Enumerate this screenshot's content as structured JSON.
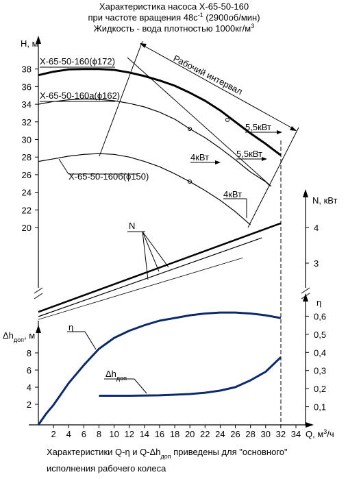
{
  "title": [
    "Характеристика насоса Х-65-50-160",
    [
      "при частоте вращения 48с",
      "-1",
      " (2900об/мин)"
    ],
    [
      "Жидкость - вода плотностью 1000кг/м",
      "3"
    ]
  ],
  "caption": [
    [
      "Характеристики Q-η и Q-Δh",
      "доп",
      " приведены для \"основного\""
    ],
    "исполнения рабочего колеса"
  ],
  "chart_data": [
    {
      "type": "line",
      "ylabel": "H, м",
      "xlim": [
        0,
        34
      ],
      "ylim": [
        20,
        40
      ],
      "yticks": [
        20,
        22,
        24,
        26,
        28,
        30,
        32,
        34,
        36,
        38
      ],
      "series": [
        {
          "name": "Х-65-50-160(ϕ172)",
          "color": "#000000",
          "line_width": 3,
          "x": [
            0,
            2,
            4,
            6,
            8,
            10,
            12,
            14,
            16,
            18,
            20,
            22,
            24,
            26,
            28,
            30,
            32
          ],
          "values": [
            37.3,
            37.7,
            37.95,
            38.0,
            38.0,
            37.9,
            37.6,
            37.2,
            36.7,
            36.1,
            35.3,
            34.4,
            33.3,
            32.0,
            30.7,
            29.5,
            28.2
          ]
        },
        {
          "name": "Х-65-50-160а(ϕ162)",
          "color": "#000000",
          "line_width": 1.2,
          "x": [
            0,
            2,
            4,
            6,
            8,
            10,
            12,
            14,
            16,
            18,
            20,
            22,
            24,
            26,
            28,
            30,
            30.6
          ],
          "values": [
            34.0,
            34.3,
            34.5,
            34.6,
            34.55,
            34.4,
            34.1,
            33.7,
            33.1,
            32.3,
            31.2,
            30.2,
            29.0,
            27.7,
            26.3,
            25.2,
            24.7
          ]
        },
        {
          "name": "Х-65-50-160б(ϕ150)",
          "color": "#000000",
          "line_width": 1.2,
          "x": [
            0,
            2,
            4,
            6,
            8,
            10,
            12,
            14,
            16,
            18,
            20,
            22,
            24,
            26,
            28
          ],
          "values": [
            27.5,
            27.8,
            28.1,
            28.3,
            28.4,
            28.3,
            28.0,
            27.5,
            26.9,
            26.1,
            25.2,
            24.2,
            23.1,
            21.8,
            20.3
          ]
        }
      ],
      "annotations": [
        "4кВт",
        "5,5кВт",
        "5,5кВт",
        "4кВт",
        "Рабочий интервал"
      ]
    },
    {
      "type": "line",
      "ylabel": "N, кВт",
      "xlim": [
        0,
        34
      ],
      "ylim": [
        2.5,
        5
      ],
      "yticks": [
        3,
        4
      ],
      "series": [
        {
          "color": "#000000",
          "line_width": 2.5,
          "x": [
            0,
            32
          ],
          "values": [
            1.63,
            4.12
          ]
        },
        {
          "color": "#000000",
          "line_width": 1.2,
          "x": [
            0,
            29.5
          ],
          "values": [
            1.5,
            3.71
          ]
        },
        {
          "color": "#000000",
          "line_width": 0.8,
          "x": [
            0,
            27
          ],
          "values": [
            1.42,
            3.15
          ]
        }
      ],
      "annotations": [
        "N"
      ]
    },
    {
      "type": "line",
      "xlabel": [
        "Q, м",
        "3",
        "/ч"
      ],
      "xlim": [
        0,
        34
      ],
      "xticks": [
        2,
        4,
        6,
        8,
        10,
        12,
        14,
        16,
        18,
        20,
        22,
        24,
        26,
        28,
        30,
        32,
        34
      ],
      "ylabel": [
        "Δh",
        "доп",
        ", м"
      ],
      "ylim": [
        0,
        10
      ],
      "yticks": [
        2,
        4,
        6,
        8
      ],
      "y2label": "η",
      "y2lim": [
        0,
        0.7
      ],
      "y2ticks": [
        {
          "value": 0.1,
          "label": "0,1"
        },
        {
          "value": 0.2,
          "label": "0,2"
        },
        {
          "value": 0.3,
          "label": "0,3"
        },
        {
          "value": 0.4,
          "label": "0,4"
        },
        {
          "value": 0.5,
          "label": "0,5"
        },
        {
          "value": 0.6,
          "label": "0,6"
        }
      ],
      "series": [
        {
          "name": "η",
          "axis": "y2",
          "color": "#0b2a6b",
          "line_width": 3,
          "x": [
            0,
            1,
            2,
            4,
            6,
            8,
            10,
            12,
            14,
            16,
            18,
            20,
            22,
            24,
            26,
            28,
            30,
            32
          ],
          "values": [
            0,
            0.06,
            0.11,
            0.23,
            0.33,
            0.42,
            0.48,
            0.52,
            0.55,
            0.575,
            0.59,
            0.605,
            0.615,
            0.62,
            0.62,
            0.615,
            0.605,
            0.59
          ]
        },
        {
          "name": "Δh",
          "name_sub": "доп",
          "color": "#0b2a6b",
          "line_width": 3,
          "x": [
            8,
            12,
            16,
            20,
            22,
            24,
            26,
            28,
            30,
            32
          ],
          "values": [
            3.0,
            3.0,
            3.05,
            3.2,
            3.35,
            3.6,
            4.0,
            4.8,
            5.8,
            7.5
          ]
        }
      ]
    }
  ]
}
